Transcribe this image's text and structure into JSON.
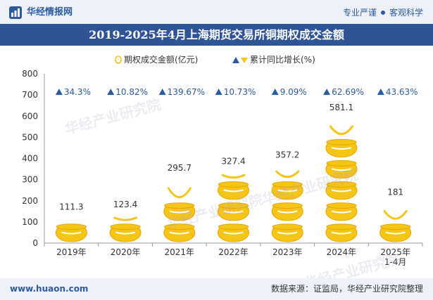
{
  "header": {
    "brand": "华经情报网",
    "tags": [
      "专业严谨",
      "客观科学"
    ]
  },
  "title": "2019-2025年4月上海期货交易所铜期权成交金额",
  "chart_data": {
    "type": "bar",
    "categories": [
      "2019年",
      "2020年",
      "2021年",
      "2022年",
      "2023年",
      "2024年",
      "2025年 1-4月"
    ],
    "series": [
      {
        "name": "期权成交金额(亿元)",
        "values": [
          111.3,
          123.4,
          295.7,
          327.4,
          357.2,
          581.1,
          181
        ],
        "labels": [
          "111.3",
          "123.4",
          "295.7",
          "327.4",
          "357.2",
          "581.1",
          "181"
        ]
      },
      {
        "name": "累计同比增长(%)",
        "values": [
          34.3,
          10.82,
          139.67,
          10.73,
          9.09,
          62.69,
          43.63
        ],
        "labels": [
          "34.3%",
          "10.82%",
          "139.67%",
          "10.73%",
          "9.09%",
          "62.69%",
          "43.63%"
        ]
      }
    ],
    "ylim": [
      0,
      800
    ],
    "yticks": [
      "0",
      "100",
      "200",
      "300",
      "400",
      "500",
      "600",
      "700",
      "800"
    ],
    "legend_position": "top",
    "colors": {
      "pot": "#f5c518",
      "pot_outline": "#e8a500",
      "growth": "#2c5aa0"
    }
  },
  "footer": {
    "site": "www.huaon.com",
    "source": "数据来源：证监局，华经产业研究院整理"
  },
  "watermark": "华经产业研究院"
}
